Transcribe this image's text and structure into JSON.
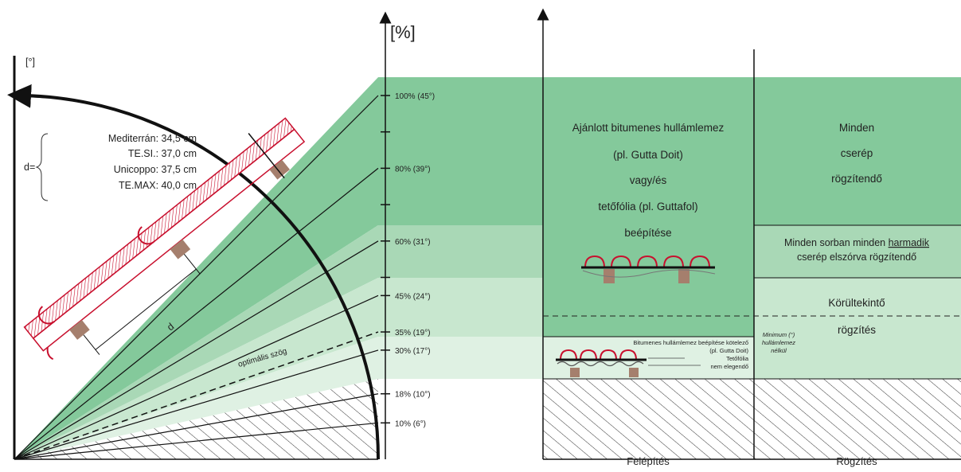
{
  "degree_axis_label": "[°]",
  "percent_axis_label": "[%]",
  "slope_ticks": [
    {
      "pct": 100,
      "label": "100% (45°)"
    },
    {
      "pct": 80,
      "label": "80% (39°)"
    },
    {
      "pct": 60,
      "label": "60% (31°)"
    },
    {
      "pct": 45,
      "label": "45% (24°)"
    },
    {
      "pct": 35,
      "label": "35% (19°)"
    },
    {
      "pct": 30,
      "label": "30% (17°)"
    },
    {
      "pct": 18,
      "label": "18% (10°)"
    },
    {
      "pct": 10,
      "label": "10% (6°)"
    }
  ],
  "d_legend": {
    "prefix": "d=",
    "items": [
      "Mediterrán: 34,5 cm",
      "TE.SI.: 37,0 cm",
      "Unicoppo: 37,5 cm",
      "TE.MAX: 40,0 cm"
    ]
  },
  "d_label": "d",
  "optimal_angle_label": "optimális szög",
  "structure": {
    "recommended": [
      "Ajánlott bitumenes hullámlemez",
      "(pl. Gutta Doit)",
      "vagy/és",
      "tetőfólia (pl. Guttafol)",
      "beépítése"
    ],
    "mandatory": [
      "Bitumenes hullámlemez beépítése kötelező",
      "(pl. Gutta Doit)",
      "Tetőfólia",
      "nem elegendő"
    ]
  },
  "fixing": {
    "all": [
      "Minden",
      "cserép",
      "rögzítendő"
    ],
    "third": {
      "line1_pre": "Minden sorban minden ",
      "line1_ul": "harmadik",
      "line2": "cserép elszórva rögzítendő"
    },
    "careful": [
      "Körültekintő",
      "rögzítés"
    ],
    "minimum": [
      "Minimum (°)",
      "hullámlemez",
      "nélkül"
    ]
  },
  "footer": {
    "left": "Felépítés",
    "right": "Rögzítés"
  },
  "colors": {
    "zone_dark": "#84c99b",
    "zone_mid": "#a9d8b6",
    "zone_light": "#c8e7cf",
    "zone_lightest": "#dff1e3",
    "tile_red": "#c8102e",
    "batten_brown": "#a57f6d"
  }
}
